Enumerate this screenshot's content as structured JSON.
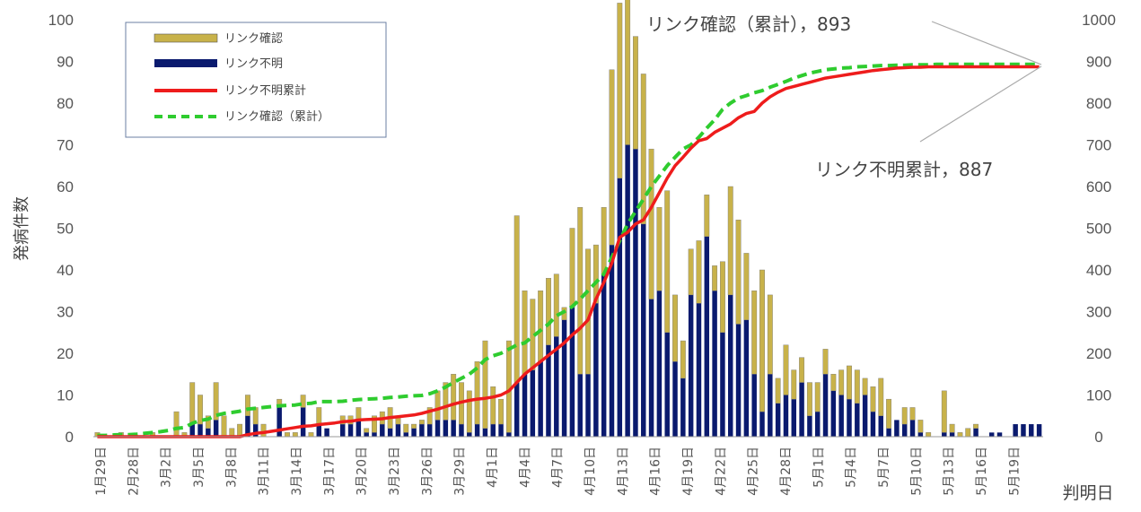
{
  "chart_data": {
    "type": "bar",
    "ylabel": "発病件数",
    "xlabel": "判明日",
    "ylim_left": [
      0,
      100
    ],
    "ylim_right": [
      0,
      1000
    ],
    "left_ticks": [
      "0",
      "10",
      "20",
      "30",
      "40",
      "50",
      "60",
      "70",
      "80",
      "90",
      "100"
    ],
    "right_ticks": [
      "0",
      "100",
      "200",
      "300",
      "400",
      "500",
      "600",
      "700",
      "800",
      "900",
      "1000"
    ],
    "x_tick_labels": [
      "1月29日",
      "2月28日",
      "3月2日",
      "3月5日",
      "3月8日",
      "3月11日",
      "3月14日",
      "3月17日",
      "3月20日",
      "3月23日",
      "3月26日",
      "3月29日",
      "4月1日",
      "4月4日",
      "4月7日",
      "4月10日",
      "4月13日",
      "4月16日",
      "4月19日",
      "4月22日",
      "4月25日",
      "4月28日",
      "5月1日",
      "5月4日",
      "5月7日",
      "5月10日",
      "5月13日",
      "5月16日",
      "5月19日"
    ],
    "legend": {
      "position": "top-left",
      "items": [
        {
          "label": "リンク確認",
          "color": "#c8b24a",
          "kind": "bar"
        },
        {
          "label": "リンク不明",
          "color": "#0a1a6e",
          "kind": "bar"
        },
        {
          "label": "リンク不明累計",
          "color": "#ee1c1c",
          "kind": "line"
        },
        {
          "label": "リンク確認（累計）",
          "color": "#2fcc2f",
          "kind": "dashed"
        }
      ]
    },
    "annotations": [
      {
        "text": "リンク確認（累計），893"
      },
      {
        "text": "リンク不明累計，887"
      }
    ],
    "colors": {
      "linked": "#c8b24a",
      "unknown": "#0a1a6e",
      "unknown_cum": "#ee1c1c",
      "linked_cum": "#2fcc2f"
    },
    "series": [
      {
        "name": "リンク確認",
        "values": [
          1,
          0,
          0,
          1,
          0,
          0,
          0,
          1,
          0,
          0,
          6,
          1,
          10,
          7,
          3,
          9,
          5,
          2,
          3,
          5,
          4,
          3,
          0,
          2,
          1,
          1,
          3,
          1,
          4,
          0,
          0,
          2,
          2,
          3,
          1,
          4,
          3,
          5,
          2,
          2,
          1,
          1,
          4,
          7,
          9,
          11,
          10,
          10,
          15,
          21,
          9,
          6,
          22,
          40,
          20,
          17,
          17,
          16,
          15,
          3,
          19,
          40,
          30,
          14,
          16,
          42,
          42,
          42,
          27,
          36,
          36,
          20,
          34,
          16,
          9,
          11,
          15,
          10,
          6,
          17,
          26,
          25,
          16,
          20,
          34,
          19,
          6,
          12,
          7,
          6,
          8,
          7,
          6,
          4,
          6,
          8,
          8,
          4,
          6,
          9,
          7,
          0,
          4,
          3,
          3,
          1,
          0,
          10,
          2,
          1,
          2,
          1,
          0,
          0,
          0,
          0,
          0,
          0,
          0,
          0
        ]
      },
      {
        "name": "リンク不明",
        "values": [
          0,
          0,
          0,
          0,
          0,
          0,
          0,
          0,
          0,
          0,
          0,
          0,
          3,
          3,
          2,
          4,
          0,
          0,
          0,
          5,
          3,
          0,
          0,
          7,
          0,
          0,
          7,
          0,
          3,
          2,
          0,
          3,
          3,
          4,
          1,
          1,
          3,
          2,
          3,
          1,
          2,
          3,
          3,
          4,
          4,
          4,
          3,
          1,
          3,
          2,
          3,
          3,
          1,
          13,
          15,
          16,
          18,
          22,
          24,
          28,
          31,
          15,
          15,
          32,
          39,
          46,
          62,
          70,
          69,
          51,
          33,
          35,
          25,
          18,
          14,
          34,
          32,
          48,
          35,
          25,
          34,
          27,
          28,
          15,
          6,
          15,
          8,
          10,
          9,
          13,
          5,
          6,
          15,
          11,
          10,
          9,
          8,
          10,
          6,
          5,
          2,
          4,
          3,
          4,
          1,
          0,
          0,
          1,
          1,
          0,
          0,
          2,
          0,
          1,
          1,
          0,
          3,
          3,
          3,
          3
        ]
      },
      {
        "name": "リンク不明累計",
        "values": [
          0,
          0,
          0,
          0,
          0,
          0,
          0,
          0,
          0,
          0,
          0,
          0,
          0,
          0,
          0,
          0,
          0,
          0,
          0,
          5,
          8,
          10,
          13,
          16,
          19,
          22,
          25,
          26,
          29,
          31,
          33,
          36,
          37,
          40,
          41,
          42,
          43,
          46,
          48,
          50,
          52,
          56,
          61,
          66,
          72,
          78,
          83,
          87,
          90,
          92,
          95,
          100,
          110,
          130,
          150,
          165,
          180,
          195,
          210,
          225,
          244,
          260,
          280,
          330,
          370,
          416,
          478,
          490,
          510,
          520,
          550,
          585,
          620,
          650,
          670,
          692,
          710,
          715,
          730,
          740,
          750,
          765,
          775,
          780,
          800,
          815,
          826,
          835,
          840,
          845,
          850,
          855,
          860,
          863,
          866,
          869,
          872,
          875,
          878,
          880,
          882,
          884,
          885,
          886,
          886,
          887,
          887,
          887,
          887,
          887,
          887,
          887,
          887,
          887,
          887,
          887,
          887,
          887,
          887,
          887
        ]
      },
      {
        "name": "リンク確認（累計）",
        "values": [
          3,
          3,
          4,
          5,
          5,
          6,
          8,
          10,
          12,
          15,
          20,
          22,
          32,
          39,
          42,
          51,
          56,
          58,
          61,
          66,
          68,
          70,
          72,
          74,
          75,
          76,
          79,
          80,
          84,
          84,
          84,
          85,
          87,
          89,
          90,
          91,
          92,
          94,
          95,
          97,
          98,
          99,
          103,
          110,
          119,
          130,
          140,
          150,
          165,
          185,
          194,
          200,
          210,
          220,
          225,
          240,
          255,
          270,
          290,
          300,
          312,
          330,
          350,
          370,
          390,
          430,
          470,
          510,
          540,
          570,
          600,
          625,
          650,
          670,
          690,
          700,
          718,
          740,
          760,
          785,
          800,
          812,
          818,
          825,
          830,
          838,
          845,
          852,
          860,
          866,
          872,
          876,
          880,
          882,
          884,
          885,
          887,
          888,
          889,
          890,
          890,
          891,
          891,
          892,
          892,
          892,
          893,
          893,
          893,
          893,
          893,
          893,
          893,
          893,
          893,
          893,
          893,
          893,
          893,
          893
        ]
      }
    ]
  }
}
